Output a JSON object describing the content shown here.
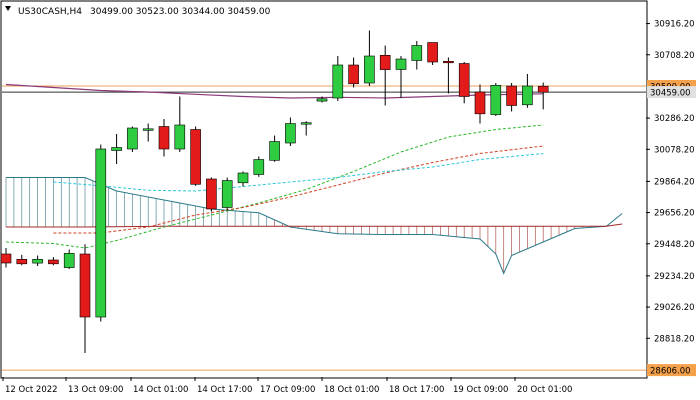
{
  "header": {
    "symbol": "US30CASH,H4",
    "ohlc": "30499.00 30523.00 30344.00 30459.00"
  },
  "colors": {
    "bull": "#2ecc40",
    "bear": "#e41b1b",
    "wick": "#000000",
    "frame": "#000000",
    "hline_orange": "#e8a15a",
    "hline_black": "#333333",
    "ma_purple": "#8b3a7a",
    "line_green_dash": "#2db82d",
    "line_red_dash": "#d04020",
    "line_cyan_dash": "#2bc8d8",
    "cloud_line": "#2a7a8a",
    "cloud_hatch_teal": "#2a6a7a",
    "cloud_hatch_red": "#a02828",
    "badge_orange": "#f5a04a",
    "badge_gray": "#e0e0e0"
  },
  "chart_data": {
    "type": "candlestick",
    "ylim": [
      28560,
      31060
    ],
    "y_ticks": [
      "30916.20",
      "30708.20",
      "30500.00",
      "30286.20",
      "30078.20",
      "29864.20",
      "29656.20",
      "29448.20",
      "29234.20",
      "29026.20",
      "28818.20",
      "28606.00"
    ],
    "x_tick_labels": [
      "12 Oct 2022",
      "13 Oct 09:00",
      "14 Oct 01:00",
      "14 Oct 17:00",
      "17 Oct 09:00",
      "18 Oct 01:00",
      "18 Oct 17:00",
      "19 Oct 09:00",
      "20 Oct 01:00"
    ],
    "price_labels": {
      "level_orange": "30500.00",
      "last_price": "30459.00",
      "bottom": "28606.00"
    },
    "levels": {
      "orange": 30500,
      "last": 30459,
      "bottom": 28606
    },
    "candles": [
      {
        "o": 29380,
        "h": 29420,
        "l": 29290,
        "c": 29320
      },
      {
        "o": 29345,
        "h": 29375,
        "l": 29305,
        "c": 29315
      },
      {
        "o": 29320,
        "h": 29370,
        "l": 29300,
        "c": 29345
      },
      {
        "o": 29340,
        "h": 29360,
        "l": 29305,
        "c": 29315
      },
      {
        "o": 29290,
        "h": 29410,
        "l": 29280,
        "c": 29385
      },
      {
        "o": 29380,
        "h": 29445,
        "l": 28720,
        "c": 28960
      },
      {
        "o": 28960,
        "h": 30110,
        "l": 28930,
        "c": 30080
      },
      {
        "o": 30070,
        "h": 30180,
        "l": 29980,
        "c": 30090
      },
      {
        "o": 30080,
        "h": 30230,
        "l": 30060,
        "c": 30220
      },
      {
        "o": 30210,
        "h": 30250,
        "l": 30130,
        "c": 30215
      },
      {
        "o": 30230,
        "h": 30280,
        "l": 30030,
        "c": 30080
      },
      {
        "o": 30080,
        "h": 30430,
        "l": 30060,
        "c": 30240
      },
      {
        "o": 30210,
        "h": 30230,
        "l": 29835,
        "c": 29845
      },
      {
        "o": 29880,
        "h": 29890,
        "l": 29665,
        "c": 29680
      },
      {
        "o": 29690,
        "h": 29890,
        "l": 29670,
        "c": 29870
      },
      {
        "o": 29855,
        "h": 29930,
        "l": 29830,
        "c": 29920
      },
      {
        "o": 29910,
        "h": 30030,
        "l": 29895,
        "c": 30010
      },
      {
        "o": 30005,
        "h": 30170,
        "l": 29995,
        "c": 30130
      },
      {
        "o": 30120,
        "h": 30290,
        "l": 30100,
        "c": 30250
      },
      {
        "o": 30245,
        "h": 30265,
        "l": 30170,
        "c": 30255
      },
      {
        "o": 30400,
        "h": 30430,
        "l": 30390,
        "c": 30415
      },
      {
        "o": 30420,
        "h": 30700,
        "l": 30400,
        "c": 30640
      },
      {
        "o": 30640,
        "h": 30690,
        "l": 30490,
        "c": 30515
      },
      {
        "o": 30520,
        "h": 30870,
        "l": 30500,
        "c": 30700
      },
      {
        "o": 30705,
        "h": 30770,
        "l": 30370,
        "c": 30610
      },
      {
        "o": 30610,
        "h": 30700,
        "l": 30420,
        "c": 30680
      },
      {
        "o": 30670,
        "h": 30800,
        "l": 30610,
        "c": 30770
      },
      {
        "o": 30790,
        "h": 30790,
        "l": 30640,
        "c": 30660
      },
      {
        "o": 30665,
        "h": 30690,
        "l": 30450,
        "c": 30660
      },
      {
        "o": 30650,
        "h": 30660,
        "l": 30385,
        "c": 30430
      },
      {
        "o": 30460,
        "h": 30510,
        "l": 30250,
        "c": 30315
      },
      {
        "o": 30310,
        "h": 30520,
        "l": 30300,
        "c": 30505
      },
      {
        "o": 30500,
        "h": 30520,
        "l": 30330,
        "c": 30370
      },
      {
        "o": 30375,
        "h": 30580,
        "l": 30355,
        "c": 30500
      },
      {
        "o": 30499,
        "h": 30523,
        "l": 30344,
        "c": 30459
      }
    ],
    "overlays": {
      "ma_purple": [
        [
          0,
          30510
        ],
        [
          3,
          30490
        ],
        [
          6,
          30470
        ],
        [
          9,
          30460
        ],
        [
          12,
          30445
        ],
        [
          15,
          30430
        ],
        [
          18,
          30420
        ],
        [
          21,
          30425
        ],
        [
          24,
          30420
        ],
        [
          27,
          30430
        ],
        [
          30,
          30440
        ],
        [
          34,
          30448
        ]
      ],
      "green_dash": [
        [
          0,
          29460
        ],
        [
          3,
          29450
        ],
        [
          5,
          29420
        ],
        [
          7,
          29470
        ],
        [
          10,
          29560
        ],
        [
          13,
          29640
        ],
        [
          16,
          29720
        ],
        [
          19,
          29810
        ],
        [
          22,
          29930
        ],
        [
          25,
          30060
        ],
        [
          28,
          30160
        ],
        [
          31,
          30210
        ],
        [
          34,
          30240
        ]
      ],
      "red_dash": [
        [
          3,
          29520
        ],
        [
          6,
          29520
        ],
        [
          9,
          29560
        ],
        [
          12,
          29640
        ],
        [
          15,
          29690
        ],
        [
          18,
          29760
        ],
        [
          21,
          29840
        ],
        [
          24,
          29920
        ],
        [
          27,
          29990
        ],
        [
          30,
          30050
        ],
        [
          34,
          30100
        ]
      ],
      "cyan_dash": [
        [
          3,
          29860
        ],
        [
          6,
          29835
        ],
        [
          9,
          29805
        ],
        [
          12,
          29800
        ],
        [
          15,
          29830
        ],
        [
          18,
          29860
        ],
        [
          21,
          29890
        ],
        [
          24,
          29930
        ],
        [
          27,
          29960
        ],
        [
          30,
          30010
        ],
        [
          34,
          30050
        ]
      ],
      "cloud_upper": [
        [
          0,
          29890
        ],
        [
          5,
          29890
        ],
        [
          7,
          29800
        ],
        [
          10,
          29740
        ],
        [
          13,
          29680
        ],
        [
          16,
          29655
        ],
        [
          18,
          29560
        ],
        [
          21,
          29515
        ],
        [
          24,
          29510
        ],
        [
          27,
          29510
        ],
        [
          30,
          29480
        ],
        [
          31,
          29380
        ],
        [
          31.5,
          29250
        ],
        [
          32,
          29370
        ],
        [
          34,
          29460
        ],
        [
          36,
          29550
        ],
        [
          38,
          29565
        ],
        [
          39,
          29650
        ]
      ],
      "cloud_lower": [
        [
          0,
          29560
        ],
        [
          5,
          29560
        ],
        [
          10,
          29565
        ],
        [
          15,
          29565
        ],
        [
          20,
          29565
        ],
        [
          25,
          29565
        ],
        [
          30,
          29565
        ],
        [
          35,
          29565
        ],
        [
          38,
          29565
        ],
        [
          39,
          29580
        ]
      ],
      "cloud_red_from": 17
    }
  }
}
